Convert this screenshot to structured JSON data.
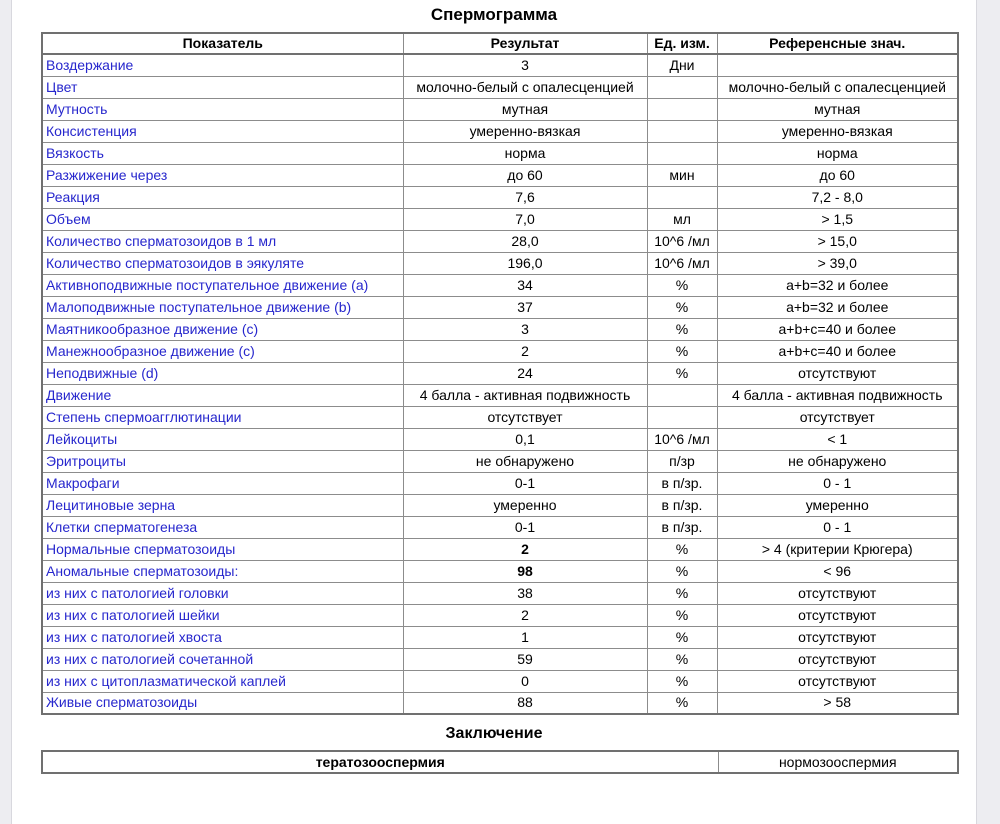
{
  "document": {
    "title": "Спермограмма",
    "conclusion_heading": "Заключение"
  },
  "table": {
    "headers": {
      "indicator": "Показатель",
      "result": "Результат",
      "unit": "Ед. изм.",
      "reference": "Референсные знач."
    },
    "rows": [
      {
        "indicator": "Воздержание",
        "result": "3",
        "unit": "Дни",
        "reference": "",
        "bold": false
      },
      {
        "indicator": "Цвет",
        "result": "молочно-белый с опалесценцией",
        "unit": "",
        "reference": "молочно-белый с опалесценцией",
        "bold": false
      },
      {
        "indicator": "Мутность",
        "result": "мутная",
        "unit": "",
        "reference": "мутная",
        "bold": false
      },
      {
        "indicator": "Консистенция",
        "result": "умеренно-вязкая",
        "unit": "",
        "reference": "умеренно-вязкая",
        "bold": false
      },
      {
        "indicator": "Вязкость",
        "result": "норма",
        "unit": "",
        "reference": "норма",
        "bold": false
      },
      {
        "indicator": "Разжижение через",
        "result": "до 60",
        "unit": "мин",
        "reference": "до 60",
        "bold": false
      },
      {
        "indicator": "Реакция",
        "result": "7,6",
        "unit": "",
        "reference": "7,2 - 8,0",
        "bold": false
      },
      {
        "indicator": "Объем",
        "result": "7,0",
        "unit": "мл",
        "reference": "> 1,5",
        "bold": false
      },
      {
        "indicator": "Количество сперматозоидов в 1 мл",
        "result": "28,0",
        "unit": "10^6 /мл",
        "reference": "> 15,0",
        "bold": false
      },
      {
        "indicator": "Количество сперматозоидов в эякуляте",
        "result": "196,0",
        "unit": "10^6 /мл",
        "reference": "> 39,0",
        "bold": false
      },
      {
        "indicator": "Активноподвижные поступательное движение (a)",
        "result": "34",
        "unit": "%",
        "reference": "a+b=32 и более",
        "bold": false
      },
      {
        "indicator": "Малоподвижные поступательное движение (b)",
        "result": "37",
        "unit": "%",
        "reference": "a+b=32 и более",
        "bold": false
      },
      {
        "indicator": "Маятникообразное движение (c)",
        "result": "3",
        "unit": "%",
        "reference": "a+b+c=40 и более",
        "bold": false
      },
      {
        "indicator": "Манежнообразное движение (c)",
        "result": "2",
        "unit": "%",
        "reference": "a+b+c=40 и более",
        "bold": false
      },
      {
        "indicator": "Неподвижные (d)",
        "result": "24",
        "unit": "%",
        "reference": "отсутствуют",
        "bold": false
      },
      {
        "indicator": "Движение",
        "result": "4 балла - активная подвижность",
        "unit": "",
        "reference": "4 балла - активная подвижность",
        "bold": false
      },
      {
        "indicator": "Степень спермоагглютинации",
        "result": "отсутствует",
        "unit": "",
        "reference": "отсутствует",
        "bold": false
      },
      {
        "indicator": "Лейкоциты",
        "result": "0,1",
        "unit": "10^6 /мл",
        "reference": "< 1",
        "bold": false
      },
      {
        "indicator": "Эритроциты",
        "result": "не обнаружено",
        "unit": "п/зр",
        "reference": "не обнаружено",
        "bold": false
      },
      {
        "indicator": "Макрофаги",
        "result": "0-1",
        "unit": "в п/зр.",
        "reference": "0 - 1",
        "bold": false
      },
      {
        "indicator": "Лецитиновые зерна",
        "result": "умеренно",
        "unit": "в п/зр.",
        "reference": "умеренно",
        "bold": false
      },
      {
        "indicator": "Клетки сперматогенеза",
        "result": "0-1",
        "unit": "в п/зр.",
        "reference": "0 - 1",
        "bold": false
      },
      {
        "indicator": "Нормальные сперматозоиды",
        "result": "2",
        "unit": "%",
        "reference": "> 4 (критерии Крюгера)",
        "bold": true
      },
      {
        "indicator": "Аномальные сперматозоиды:",
        "result": "98",
        "unit": "%",
        "reference": "< 96",
        "bold": true
      },
      {
        "indicator": "из них с патологией головки",
        "result": "38",
        "unit": "%",
        "reference": "отсутствуют",
        "bold": false
      },
      {
        "indicator": "из них с патологией шейки",
        "result": "2",
        "unit": "%",
        "reference": "отсутствуют",
        "bold": false
      },
      {
        "indicator": "из них с патологией хвоста",
        "result": "1",
        "unit": "%",
        "reference": "отсутствуют",
        "bold": false
      },
      {
        "indicator": "из них с патологией сочетанной",
        "result": "59",
        "unit": "%",
        "reference": "отсутствуют",
        "bold": false
      },
      {
        "indicator": "из них с цитоплазматической каплей",
        "result": "0",
        "unit": "%",
        "reference": "отсутствуют",
        "bold": false
      },
      {
        "indicator": "Живые сперматозоиды",
        "result": "88",
        "unit": "%",
        "reference": "> 58",
        "bold": false
      }
    ]
  },
  "conclusion": {
    "result": "тератозооспермия",
    "reference": "нормозооспермия"
  },
  "colors": {
    "indicator_text": "#2727cd",
    "value_text": "#000000",
    "border_inner": "#8c8c8c",
    "border_outer": "#707070",
    "page_background": "#ffffff",
    "frame_background": "#ededf1"
  }
}
